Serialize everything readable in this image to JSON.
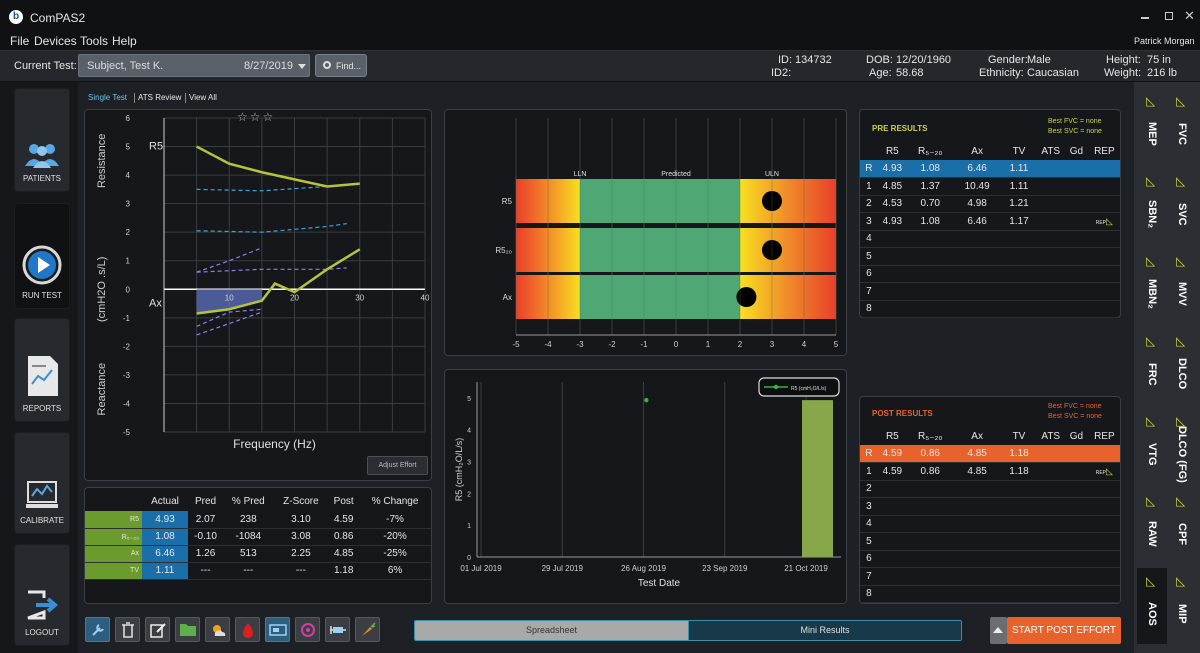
{
  "app": {
    "title": "ComPAS2",
    "user": "Patrick Morgan"
  },
  "menu": [
    "File",
    "Devices",
    "Tools",
    "Help"
  ],
  "toolbar": {
    "current_test_label": "Current Test:",
    "test_name": "Subject, Test K.",
    "test_date": "8/27/2019",
    "find_label": "Find..."
  },
  "patient": {
    "id_label": "ID:",
    "id": "134732",
    "id2_label": "ID2:",
    "id2": "",
    "dob_label": "DOB:",
    "dob": "12/20/1960",
    "age_label": "Age:",
    "age": "58.68",
    "gender_label": "Gender:",
    "gender": "Male",
    "ethnicity_label": "Ethnicity:",
    "ethnicity": "Caucasian",
    "height_label": "Height:",
    "height": "75 in",
    "weight_label": "Weight:",
    "weight": "216 lb"
  },
  "nav": [
    "PATIENTS",
    "RUN TEST",
    "REPORTS",
    "CALIBRATE",
    "LOGOUT"
  ],
  "view_tabs": [
    "Single Test",
    "ATS Review",
    "View All"
  ],
  "right_tabs": [
    [
      "MEP",
      "FVC"
    ],
    [
      "SBN₂",
      "SVC"
    ],
    [
      "MBN₂",
      "MVV"
    ],
    [
      "FRC",
      "DLCO"
    ],
    [
      "VTG",
      "DLCO (FG)"
    ],
    [
      "RAW",
      "CPF"
    ],
    [
      "AOS",
      "MIP"
    ]
  ],
  "chart_data": [
    {
      "type": "line",
      "ylabel_top": "Resistance",
      "ylabel_mid": "(cmH2O .s/L)",
      "ylabel_bottom": "Reactance",
      "xlabel": "Frequency (Hz)",
      "xlim": [
        0,
        40
      ],
      "ylim": [
        -5,
        6
      ],
      "x_ticks": [
        "10",
        "20",
        "30",
        "40"
      ],
      "y_ticks": [
        "6",
        "5",
        "4",
        "3",
        "2",
        "1",
        "0",
        "-1",
        "-2",
        "-3",
        "-4",
        "-5"
      ],
      "labels": {
        "r5": "R5",
        "ax": "Ax"
      },
      "series": [
        {
          "name": "R5",
          "x": [
            5,
            10,
            15,
            20,
            25,
            30
          ],
          "y": [
            5.0,
            4.4,
            4.1,
            3.85,
            3.6,
            3.7
          ]
        },
        {
          "x": [
            5,
            10,
            15,
            17,
            20,
            25,
            30
          ],
          "y": [
            -0.85,
            -0.7,
            -0.4,
            0.2,
            -0.1,
            0.7,
            1.4
          ]
        }
      ],
      "adjust_effort_label": "Adjust Effort"
    },
    {
      "type": "bar",
      "x_ticks": [
        "-5",
        "-4",
        "-3",
        "-2",
        "-1",
        "0",
        "1",
        "2",
        "3",
        "4",
        "5"
      ],
      "zone_labels": [
        "LLN",
        "Predicted",
        "ULN"
      ],
      "rows": [
        "R5",
        "R5₂₀",
        "Ax"
      ],
      "values": [
        3.0,
        3.0,
        2.2
      ]
    },
    {
      "type": "scatter",
      "legend": "R5 (cmH₂O/L/s)",
      "ylabel": "R5 (cmH₂O/L/s)",
      "xlabel": "Test Date",
      "y_ticks": [
        "0",
        "1",
        "2",
        "3",
        "4",
        "5"
      ],
      "x_ticks": [
        "01 Jul 2019",
        "29 Jul 2019",
        "26 Aug 2019",
        "23 Sep 2019",
        "21 Oct 2019"
      ],
      "points": [
        {
          "x": "27 Aug 2019",
          "y": 4.93
        }
      ],
      "bar": {
        "x": "21 Oct 2019",
        "y": 4.93
      }
    }
  ],
  "stats": {
    "headers": [
      "",
      "Actual",
      "Pred",
      "% Pred",
      "Z-Score",
      "Post",
      "% Change"
    ],
    "rows": [
      [
        "R5",
        "4.93",
        "2.07",
        "238",
        "3.10",
        "4.59",
        "-7%"
      ],
      [
        "R₅₋₂₀",
        "1.08",
        "-0.10",
        "-1084",
        "3.08",
        "0.86",
        "-20%"
      ],
      [
        "Ax",
        "6.46",
        "1.26",
        "513",
        "2.25",
        "4.85",
        "-25%"
      ],
      [
        "TV",
        "1.11",
        "---",
        "---",
        "---",
        "1.18",
        "6%"
      ]
    ]
  },
  "pre": {
    "title": "PRE RESULTS",
    "best_fvc": "Best FVC = none",
    "best_svc": "Best SVC = none",
    "headers": [
      "",
      "R5",
      "R₅₋₂₀",
      "Ax",
      "TV",
      "ATS",
      "Gd",
      "REP"
    ],
    "rows": [
      [
        "R",
        "4.93",
        "1.08",
        "6.46",
        "1.11",
        "",
        "",
        ""
      ],
      [
        "1",
        "4.85",
        "1.37",
        "10.49",
        "1.11",
        "",
        "",
        ""
      ],
      [
        "2",
        "4.53",
        "0.70",
        "4.98",
        "1.21",
        "",
        "",
        ""
      ],
      [
        "3",
        "4.93",
        "1.08",
        "6.46",
        "1.17",
        "",
        "",
        "REP"
      ],
      [
        "4",
        "",
        "",
        "",
        "",
        "",
        "",
        ""
      ],
      [
        "5",
        "",
        "",
        "",
        "",
        "",
        "",
        ""
      ],
      [
        "6",
        "",
        "",
        "",
        "",
        "",
        "",
        ""
      ],
      [
        "7",
        "",
        "",
        "",
        "",
        "",
        "",
        ""
      ],
      [
        "8",
        "",
        "",
        "",
        "",
        "",
        "",
        ""
      ]
    ]
  },
  "post": {
    "title": "POST RESULTS",
    "best_fvc": "Best FVC = none",
    "best_svc": "Best SVC = none",
    "headers": [
      "",
      "R5",
      "R₅₋₂₀",
      "Ax",
      "TV",
      "ATS",
      "Gd",
      "REP"
    ],
    "rows": [
      [
        "R",
        "4.59",
        "0.86",
        "4.85",
        "1.18",
        "",
        "",
        ""
      ],
      [
        "1",
        "4.59",
        "0.86",
        "4.85",
        "1.18",
        "",
        "",
        "REP"
      ],
      [
        "2",
        "",
        "",
        "",
        "",
        "",
        "",
        ""
      ],
      [
        "3",
        "",
        "",
        "",
        "",
        "",
        "",
        ""
      ],
      [
        "4",
        "",
        "",
        "",
        "",
        "",
        "",
        ""
      ],
      [
        "5",
        "",
        "",
        "",
        "",
        "",
        "",
        ""
      ],
      [
        "6",
        "",
        "",
        "",
        "",
        "",
        "",
        ""
      ],
      [
        "7",
        "",
        "",
        "",
        "",
        "",
        "",
        ""
      ],
      [
        "8",
        "",
        "",
        "",
        "",
        "",
        "",
        ""
      ]
    ]
  },
  "bottom": {
    "spreadsheet": "Spreadsheet",
    "mini_results": "Mini Results",
    "start_post": "START POST EFFORT"
  },
  "colors": {
    "accent": "#1a6fa8",
    "post": "#e8622c",
    "green": "#6b9a2d",
    "curve": "#b5c43a"
  }
}
